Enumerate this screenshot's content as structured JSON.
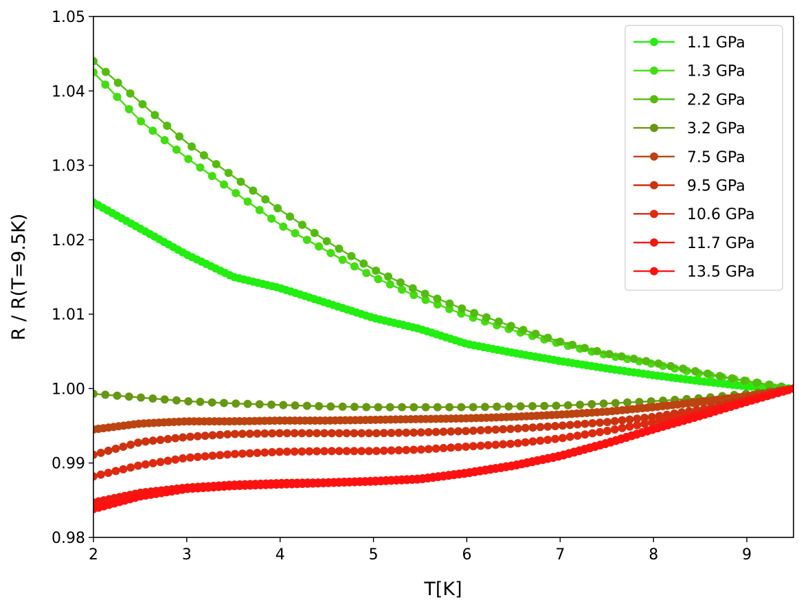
{
  "chart_data": {
    "type": "line",
    "title": "",
    "xlabel": "T[K]",
    "ylabel": "R / R(T=9.5K)",
    "xlim": [
      2,
      9.5
    ],
    "ylim": [
      0.98,
      1.05
    ],
    "xticks": [
      2,
      3,
      4,
      5,
      6,
      7,
      8,
      9
    ],
    "xtick_labels": [
      "2",
      "3",
      "4",
      "5",
      "6",
      "7",
      "8",
      "9"
    ],
    "yticks": [
      0.98,
      0.99,
      1.0,
      1.01,
      1.02,
      1.03,
      1.04,
      1.05
    ],
    "ytick_labels": [
      "0.98",
      "0.99",
      "1.00",
      "1.01",
      "1.02",
      "1.03",
      "1.04",
      "1.05"
    ],
    "legend_position": "top-right",
    "series": [
      {
        "name": "1.1 GPa",
        "color": "#22ee11",
        "x": [
          2.0,
          2.5,
          3.0,
          3.5,
          4.0,
          4.5,
          5.0,
          5.5,
          6.0,
          6.5,
          7.0,
          7.5,
          8.0,
          8.5,
          9.0,
          9.5
        ],
        "y": [
          1.025,
          1.0215,
          1.018,
          1.015,
          1.0135,
          1.0115,
          1.0095,
          1.008,
          1.006,
          1.0048,
          1.0037,
          1.0027,
          1.0018,
          1.001,
          1.0003,
          1.0
        ],
        "n_markers": 150
      },
      {
        "name": "1.3 GPa",
        "color": "#44dd11",
        "x": [
          2.0,
          2.5,
          3.0,
          3.5,
          4.0,
          4.5,
          5.0,
          5.5,
          6.0,
          6.5,
          7.0,
          7.5,
          8.0,
          8.5,
          9.0,
          9.5
        ],
        "y": [
          1.0425,
          1.036,
          1.031,
          1.0265,
          1.022,
          1.0185,
          1.015,
          1.0122,
          1.0098,
          1.0078,
          1.006,
          1.0045,
          1.0033,
          1.002,
          1.001,
          1.0
        ],
        "n_markers": 60
      },
      {
        "name": "2.2 GPa",
        "color": "#55bb11",
        "x": [
          2.0,
          2.5,
          3.0,
          3.5,
          4.0,
          4.5,
          5.0,
          5.5,
          6.0,
          6.5,
          7.0,
          7.5,
          8.0,
          8.5,
          9.0,
          9.5
        ],
        "y": [
          1.044,
          1.0385,
          1.033,
          1.0285,
          1.024,
          1.0198,
          1.016,
          1.013,
          1.0105,
          1.0083,
          1.0063,
          1.0047,
          1.0035,
          1.0022,
          1.001,
          1.0
        ],
        "n_markers": 58
      },
      {
        "name": "3.2 GPa",
        "color": "#669911",
        "x": [
          2.0,
          2.5,
          3.0,
          3.5,
          4.0,
          4.5,
          5.0,
          5.5,
          6.0,
          6.5,
          7.0,
          7.5,
          8.0,
          8.5,
          9.0,
          9.5
        ],
        "y": [
          0.9993,
          0.9988,
          0.9983,
          0.998,
          0.9978,
          0.9976,
          0.9975,
          0.9975,
          0.9975,
          0.9976,
          0.9977,
          0.998,
          0.9983,
          0.9987,
          0.9993,
          1.0
        ],
        "n_markers": 60
      },
      {
        "name": "7.5 GPa",
        "color": "#bb4411",
        "x": [
          2.0,
          2.5,
          3.0,
          3.5,
          4.0,
          4.5,
          5.0,
          5.5,
          6.0,
          6.5,
          7.0,
          7.5,
          8.0,
          8.5,
          9.0,
          9.5
        ],
        "y": [
          0.9945,
          0.9953,
          0.9956,
          0.9956,
          0.9957,
          0.9957,
          0.9958,
          0.9959,
          0.996,
          0.9962,
          0.9965,
          0.9969,
          0.9975,
          0.9982,
          0.999,
          1.0
        ],
        "n_markers": 140
      },
      {
        "name": "9.5 GPa",
        "color": "#cc3311",
        "x": [
          2.0,
          2.5,
          3.0,
          3.5,
          4.0,
          4.5,
          5.0,
          5.5,
          6.0,
          6.5,
          7.0,
          7.5,
          8.0,
          8.5,
          9.0,
          9.5
        ],
        "y": [
          0.9911,
          0.9928,
          0.9935,
          0.9939,
          0.994,
          0.994,
          0.994,
          0.9941,
          0.9943,
          0.9946,
          0.995,
          0.9955,
          0.9962,
          0.9972,
          0.9985,
          1.0
        ],
        "n_markers": 95
      },
      {
        "name": "10.6 GPa",
        "color": "#dd2a11",
        "x": [
          2.0,
          2.5,
          3.0,
          3.5,
          4.0,
          4.5,
          5.0,
          5.5,
          6.0,
          6.5,
          7.0,
          7.5,
          8.0,
          8.5,
          9.0,
          9.5
        ],
        "y": [
          0.9882,
          0.9897,
          0.9907,
          0.9912,
          0.9915,
          0.9916,
          0.9916,
          0.9918,
          0.9922,
          0.9926,
          0.9933,
          0.9943,
          0.9955,
          0.9968,
          0.9983,
          1.0
        ],
        "n_markers": 95
      },
      {
        "name": "11.7 GPa",
        "color": "#ee1a11",
        "x": [
          2.0,
          2.5,
          3.0,
          3.5,
          4.0,
          4.5,
          5.0,
          5.5,
          6.0,
          6.5,
          7.0,
          7.5,
          8.0,
          8.5,
          9.0,
          9.5
        ],
        "y": [
          0.9847,
          0.986,
          0.9867,
          0.9871,
          0.9873,
          0.9874,
          0.9876,
          0.9879,
          0.9887,
          0.9897,
          0.991,
          0.9927,
          0.9946,
          0.9965,
          0.9983,
          1.0
        ],
        "n_markers": 135
      },
      {
        "name": "13.5 GPa",
        "color": "#ff1111",
        "x": [
          2.0,
          2.5,
          3.0,
          3.5,
          4.0,
          4.5,
          5.0,
          5.5,
          6.0,
          6.5,
          7.0,
          7.5,
          8.0,
          8.5,
          9.0,
          9.5
        ],
        "y": [
          0.9838,
          0.9855,
          0.9865,
          0.9869,
          0.9871,
          0.9873,
          0.9875,
          0.9878,
          0.9886,
          0.9896,
          0.9909,
          0.9926,
          0.9945,
          0.9963,
          0.9982,
          1.0
        ],
        "n_markers": 135
      }
    ]
  }
}
